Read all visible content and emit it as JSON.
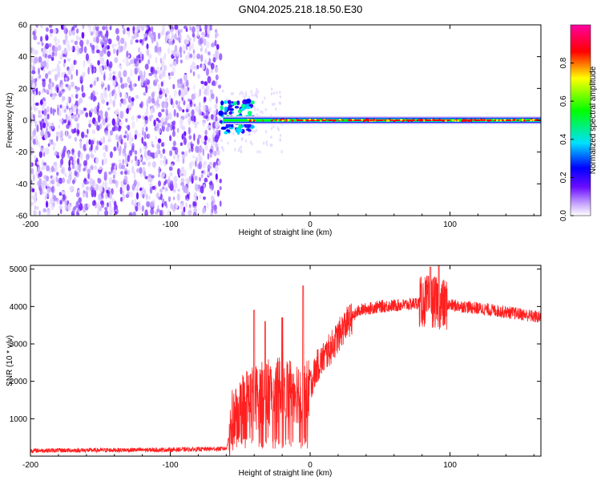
{
  "page_title": "GN04.2025.218.18.50.E30",
  "chart_data": [
    {
      "type": "heatmap",
      "title": "GN04.2025.218.18.50.E30",
      "xlabel": "Height of straight line (km)",
      "ylabel": "Frequency (Hz)",
      "xlim": [
        -200,
        165
      ],
      "ylim": [
        -60,
        60
      ],
      "x_ticks": [
        -200,
        -100,
        0,
        100
      ],
      "y_ticks": [
        -60,
        -40,
        -20,
        0,
        20,
        40,
        60
      ],
      "colorbar": {
        "label": "Normalized spectral amplitude",
        "range": [
          0,
          1
        ],
        "ticks": [
          0.0,
          0.2,
          0.4,
          0.6,
          0.8
        ],
        "tick_labels": [
          "0.0",
          "0.2",
          "0.4",
          "0.6",
          "0.8"
        ],
        "colormap": [
          "#ffffff",
          "#6a0dff",
          "#0000ff",
          "#00e0ff",
          "#00ff00",
          "#ffff00",
          "#ff0000",
          "#ff00a0"
        ]
      },
      "regions": [
        {
          "name": "noise",
          "x": [
            -200,
            -64
          ],
          "freq_range": [
            -60,
            60
          ],
          "amplitude": [
            0.0,
            0.2
          ]
        },
        {
          "name": "onset",
          "x": [
            -64,
            -40
          ],
          "freq_range": [
            -8,
            12
          ],
          "amplitude": [
            0.2,
            0.8
          ]
        },
        {
          "name": "signal",
          "x": [
            -40,
            165
          ],
          "center_freq": 0,
          "amplitude_peak": 1.0
        }
      ]
    },
    {
      "type": "line",
      "xlabel": "Height of straight line (km)",
      "ylabel": "SNR (10 * v/v)",
      "xlim": [
        -200,
        165
      ],
      "ylim": [
        0,
        5100
      ],
      "x_ticks": [
        -200,
        -100,
        0,
        100
      ],
      "y_ticks": [
        1000,
        2000,
        3000,
        4000,
        5000
      ],
      "color": "#ff0000",
      "envelope": [
        {
          "x": -200,
          "y": 150
        },
        {
          "x": -150,
          "y": 160
        },
        {
          "x": -100,
          "y": 170
        },
        {
          "x": -60,
          "y": 200
        },
        {
          "x": -55,
          "y": 1000
        },
        {
          "x": -45,
          "y": 1500
        },
        {
          "x": -30,
          "y": 1700
        },
        {
          "x": -15,
          "y": 1800
        },
        {
          "x": -2,
          "y": 1700
        },
        {
          "x": 5,
          "y": 2400
        },
        {
          "x": 15,
          "y": 2900
        },
        {
          "x": 25,
          "y": 3500
        },
        {
          "x": 35,
          "y": 3900
        },
        {
          "x": 50,
          "y": 4000
        },
        {
          "x": 70,
          "y": 4050
        },
        {
          "x": 85,
          "y": 4150
        },
        {
          "x": 95,
          "y": 4050
        },
        {
          "x": 110,
          "y": 4000
        },
        {
          "x": 130,
          "y": 3900
        },
        {
          "x": 150,
          "y": 3800
        },
        {
          "x": 165,
          "y": 3700
        }
      ],
      "spikes": [
        {
          "x": -40,
          "y": 3900
        },
        {
          "x": -32,
          "y": 3600
        },
        {
          "x": -20,
          "y": 3700
        },
        {
          "x": -5,
          "y": 4550
        },
        {
          "x": 86,
          "y": 5050
        },
        {
          "x": 92,
          "y": 5100
        }
      ]
    }
  ]
}
